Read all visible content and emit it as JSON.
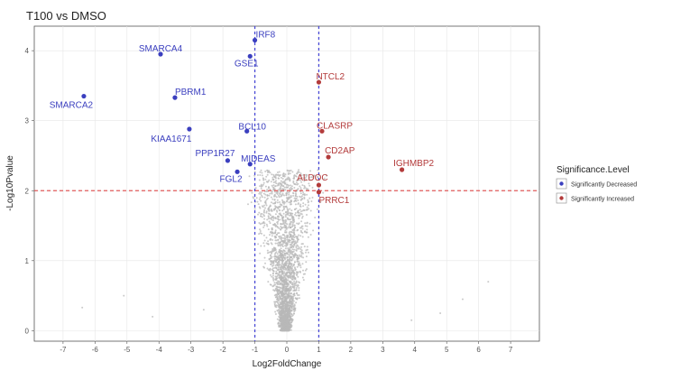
{
  "chart_data": {
    "type": "scatter",
    "title": "T100 vs DMSO",
    "xlabel": "Log2FoldChange",
    "ylabel": "-Log10Pvalue",
    "xlim": [
      -7.9,
      7.9
    ],
    "ylim": [
      -0.15,
      4.35
    ],
    "x_ticks": [
      -7,
      -6,
      -5,
      -4,
      -3,
      -2,
      -1,
      0,
      1,
      2,
      3,
      4,
      5,
      6,
      7
    ],
    "y_ticks": [
      0,
      1,
      2,
      3,
      4
    ],
    "grid": true,
    "thresholds": {
      "x": [
        -1,
        1
      ],
      "y": 2
    },
    "colors": {
      "decreased": "#3b3fbf",
      "increased": "#b33b3b",
      "background": "#b8b8b8",
      "v_threshold": "#4a4ad6",
      "h_threshold": "#e05a5a"
    },
    "legend": {
      "title": "Significance.Level",
      "position": "right",
      "entries": [
        {
          "label": "Significantly Decreased",
          "color": "#3b3fbf"
        },
        {
          "label": "Significantly Increased",
          "color": "#b33b3b"
        }
      ]
    },
    "series": [
      {
        "name": "Significantly Decreased",
        "points": [
          {
            "label": "IRF8",
            "x": -1.0,
            "y": 4.15
          },
          {
            "label": "SMARCA4",
            "x": -3.95,
            "y": 3.95
          },
          {
            "label": "GSE1",
            "x": -1.15,
            "y": 3.92
          },
          {
            "label": "SMARCA2",
            "x": -6.35,
            "y": 3.35
          },
          {
            "label": "PBRM1",
            "x": -3.5,
            "y": 3.33
          },
          {
            "label": "BCL10",
            "x": -1.25,
            "y": 2.85
          },
          {
            "label": "KIAA1671",
            "x": -3.05,
            "y": 2.88
          },
          {
            "label": "PPP1R27",
            "x": -1.85,
            "y": 2.43
          },
          {
            "label": "MIDEAS",
            "x": -1.15,
            "y": 2.38
          },
          {
            "label": "FGL2",
            "x": -1.55,
            "y": 2.27
          }
        ]
      },
      {
        "name": "Significantly Increased",
        "points": [
          {
            "label": "NTCL2",
            "x": 1.0,
            "y": 3.55
          },
          {
            "label": "CLASRP",
            "x": 1.1,
            "y": 2.85
          },
          {
            "label": "CD2AP",
            "x": 1.3,
            "y": 2.48
          },
          {
            "label": "IGHMBP2",
            "x": 3.6,
            "y": 2.3
          },
          {
            "label": "ALDOC",
            "x": 1.0,
            "y": 2.08
          },
          {
            "label": "PRRC1",
            "x": 1.0,
            "y": 1.98
          }
        ]
      }
    ]
  }
}
